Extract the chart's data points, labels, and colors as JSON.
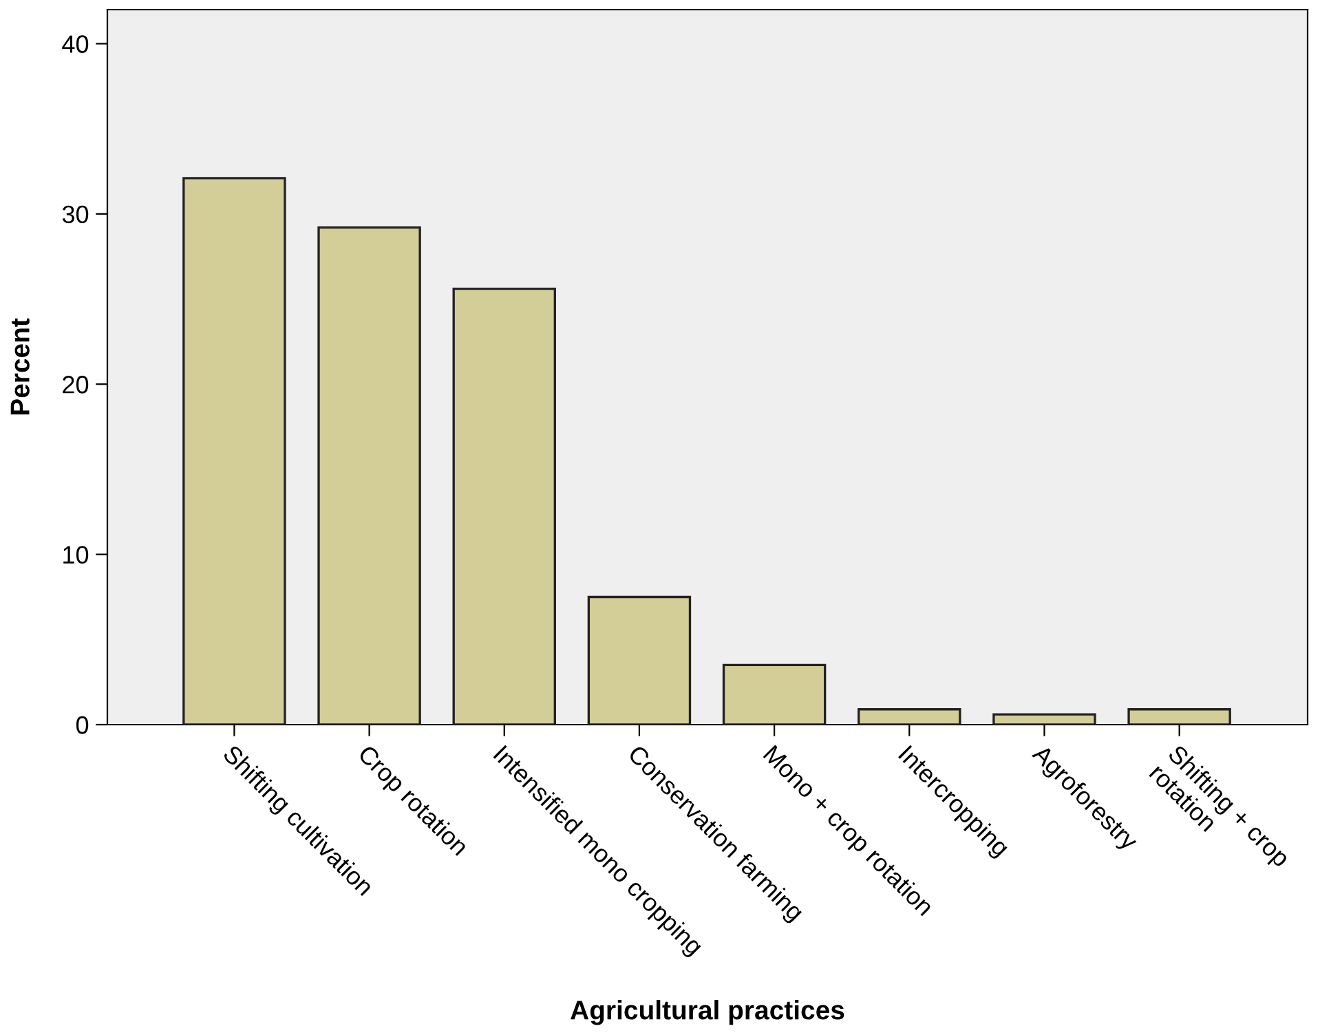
{
  "chart_data": {
    "type": "bar",
    "xlabel": "Agricultural practices",
    "ylabel": "Percent",
    "categories": [
      "Shifting cultivation",
      "Crop rotation",
      "Intensified mono cropping",
      "Conservation farming",
      "Mono + crop rotation",
      "Intercropping",
      "Agroforestry",
      "Shifting + crop\nrotation"
    ],
    "values": [
      32.1,
      29.2,
      25.6,
      7.5,
      3.5,
      0.9,
      0.6,
      0.9
    ],
    "color": "#d3ce97",
    "ylim": [
      0,
      42
    ],
    "yticks": [
      0,
      10,
      20,
      30,
      40
    ],
    "grid": false
  }
}
